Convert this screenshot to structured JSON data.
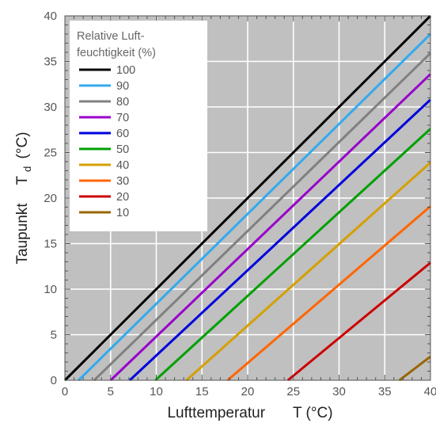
{
  "chart_data": {
    "type": "line",
    "x_label": "Lufttemperatur",
    "x_unit": "T (°C)",
    "y_label": "Taupunkt",
    "y_symbol": "T",
    "y_symbol_sub": "d",
    "y_unit": "(°C)",
    "xlim": [
      0,
      40
    ],
    "ylim": [
      0,
      40
    ],
    "x_ticks": [
      0,
      5,
      10,
      15,
      20,
      25,
      30,
      35,
      40
    ],
    "y_ticks": [
      0,
      5,
      10,
      15,
      20,
      25,
      30,
      35,
      40
    ],
    "grid": true,
    "plot_background": "#c0c0c0",
    "legend": {
      "title_lines": [
        "Relative Luft-",
        "feuchtigkeit (%)"
      ],
      "position": "top-left"
    },
    "series": [
      {
        "name": "100",
        "color": "#000000",
        "x": [
          0,
          40
        ],
        "y": [
          0,
          40
        ]
      },
      {
        "name": "90",
        "color": "#33aaee",
        "x": [
          1.5,
          40
        ],
        "y": [
          0,
          38.0
        ]
      },
      {
        "name": "80",
        "color": "#808080",
        "x": [
          3.2,
          40
        ],
        "y": [
          0,
          35.9
        ]
      },
      {
        "name": "70",
        "color": "#9900cc",
        "x": [
          5.0,
          40
        ],
        "y": [
          0,
          33.6
        ]
      },
      {
        "name": "60",
        "color": "#0000dd",
        "x": [
          7.1,
          40
        ],
        "y": [
          0,
          30.8
        ]
      },
      {
        "name": "50",
        "color": "#00a000",
        "x": [
          9.9,
          40
        ],
        "y": [
          0,
          27.6
        ]
      },
      {
        "name": "40",
        "color": "#d4a000",
        "x": [
          13.3,
          40
        ],
        "y": [
          0,
          23.9
        ]
      },
      {
        "name": "30",
        "color": "#ff6600",
        "x": [
          17.8,
          40
        ],
        "y": [
          0,
          19.1
        ]
      },
      {
        "name": "20",
        "color": "#cc0000",
        "x": [
          24.4,
          40
        ],
        "y": [
          0,
          12.9
        ]
      },
      {
        "name": "10",
        "color": "#996600",
        "x": [
          36.6,
          40
        ],
        "y": [
          0,
          2.6
        ]
      }
    ]
  }
}
